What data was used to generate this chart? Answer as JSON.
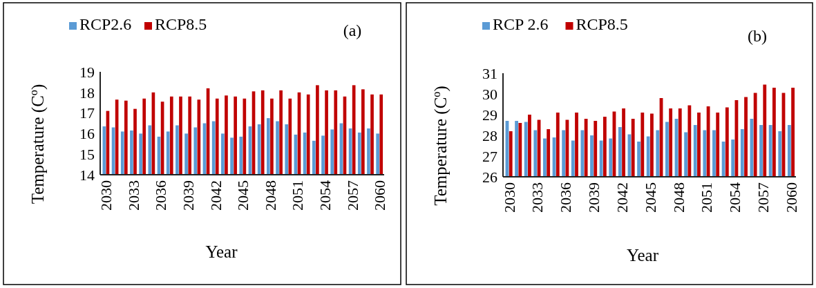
{
  "chart_data": [
    {
      "type": "bar",
      "ylabel": "Temperature (C$^{o}$)",
      "xlabel": "Year",
      "annotations": [
        "(a)"
      ],
      "legend": "top",
      "categories": [
        "2030",
        null,
        null,
        "2033",
        null,
        null,
        "2036",
        null,
        null,
        "2039",
        null,
        null,
        "2042",
        null,
        null,
        "2045",
        null,
        null,
        "2048",
        null,
        null,
        "2051",
        null,
        null,
        "2054",
        null,
        null,
        "2057",
        null,
        null,
        "2060"
      ],
      "ylim": [
        14,
        19
      ],
      "yticks": [
        14,
        15,
        16,
        17,
        18,
        19
      ],
      "series": [
        {
          "name": "RCP2.6",
          "color": "#5b9bd5",
          "values": [
            16.35,
            16.3,
            16.1,
            16.15,
            16.0,
            16.4,
            15.85,
            16.1,
            16.4,
            16.0,
            16.3,
            16.5,
            16.6,
            16.0,
            15.8,
            15.85,
            16.35,
            16.45,
            16.75,
            16.6,
            16.45,
            15.95,
            16.05,
            15.65,
            15.9,
            16.2,
            16.5,
            16.25,
            16.05,
            16.25,
            16.0
          ]
        },
        {
          "name": "RCP8.5",
          "color": "#c00000",
          "values": [
            17.1,
            17.65,
            17.6,
            17.2,
            17.7,
            18.0,
            17.55,
            17.8,
            17.8,
            17.8,
            17.65,
            18.2,
            17.7,
            17.85,
            17.8,
            17.7,
            18.05,
            18.1,
            17.7,
            18.1,
            17.7,
            18.0,
            17.9,
            18.35,
            18.1,
            18.1,
            17.8,
            18.35,
            18.15,
            17.9,
            17.9
          ]
        }
      ]
    },
    {
      "type": "bar",
      "ylabel": "Temperature (C$^{o}$)",
      "xlabel": "Year",
      "annotations": [
        "(b)"
      ],
      "legend": "top",
      "categories": [
        "2030",
        null,
        null,
        "2033",
        null,
        null,
        "2036",
        null,
        null,
        "2039",
        null,
        null,
        "2042",
        null,
        null,
        "2045",
        null,
        null,
        "2048",
        null,
        null,
        "2051",
        null,
        null,
        "2054",
        null,
        null,
        "2057",
        null,
        null,
        "2060"
      ],
      "ylim": [
        26,
        31
      ],
      "yticks": [
        26,
        27,
        28,
        29,
        30,
        31
      ],
      "series": [
        {
          "name": "RCP 2.6",
          "color": "#5b9bd5",
          "values": [
            28.7,
            28.7,
            28.65,
            28.25,
            27.85,
            27.9,
            28.25,
            27.75,
            28.25,
            28.0,
            27.75,
            27.85,
            28.4,
            28.05,
            27.7,
            27.95,
            28.25,
            28.65,
            28.8,
            28.15,
            28.5,
            28.25,
            28.25,
            27.7,
            27.8,
            28.3,
            28.8,
            28.5,
            28.5,
            28.2,
            28.5
          ]
        },
        {
          "name": "RCP8.5",
          "color": "#c00000",
          "values": [
            28.2,
            28.6,
            29.0,
            28.75,
            28.3,
            29.1,
            28.75,
            29.1,
            28.8,
            28.7,
            28.9,
            29.15,
            29.3,
            28.8,
            29.1,
            29.05,
            29.8,
            29.3,
            29.3,
            29.45,
            29.1,
            29.4,
            29.1,
            29.35,
            29.7,
            29.85,
            30.05,
            30.45,
            30.3,
            30.05,
            30.3
          ]
        }
      ]
    }
  ]
}
